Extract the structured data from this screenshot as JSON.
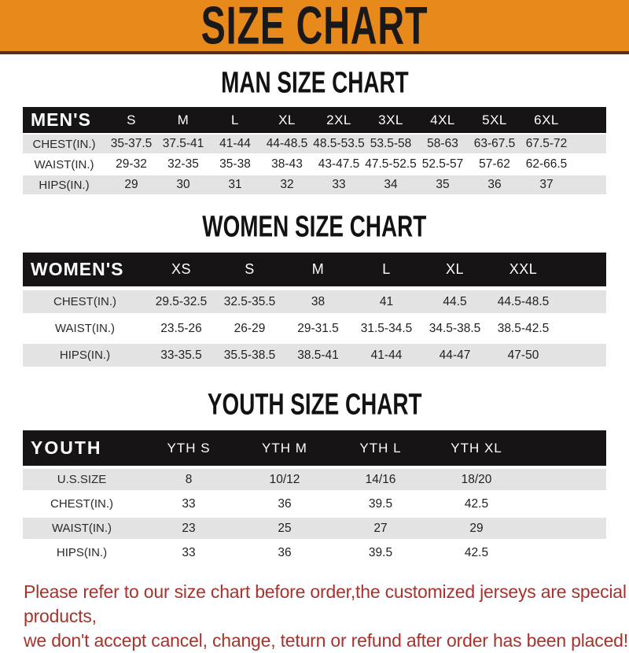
{
  "banner": {
    "title": "SIZE CHART",
    "background_color": "#E8891C",
    "text_color": "#191919"
  },
  "sections": {
    "men": {
      "title": "MAN SIZE CHART"
    },
    "women": {
      "title": "WOMEN SIZE CHART"
    },
    "youth": {
      "title": "YOUTH SIZE CHART"
    }
  },
  "tables": {
    "men": {
      "header_label": "MEN'S",
      "columns": [
        "S",
        "M",
        "L",
        "XL",
        "2XL",
        "3XL",
        "4XL",
        "5XL",
        "6XL"
      ],
      "rows": [
        {
          "label": "CHEST(IN.)",
          "values": [
            "35-37.5",
            "37.5-41",
            "41-44",
            "44-48.5",
            "48.5-53.5",
            "53.5-58",
            "58-63",
            "63-67.5",
            "67.5-72"
          ]
        },
        {
          "label": "WAIST(IN.)",
          "values": [
            "29-32",
            "32-35",
            "35-38",
            "38-43",
            "43-47.5",
            "47.5-52.5",
            "52.5-57",
            "57-62",
            "62-66.5"
          ]
        },
        {
          "label": "HIPS(IN.)",
          "values": [
            "29",
            "30",
            "31",
            "32",
            "33",
            "34",
            "35",
            "36",
            "37"
          ]
        }
      ]
    },
    "women": {
      "header_label": "WOMEN'S",
      "columns": [
        "XS",
        "S",
        "M",
        "L",
        "XL",
        "XXL"
      ],
      "rows": [
        {
          "label": "CHEST(IN.)",
          "values": [
            "29.5-32.5",
            "32.5-35.5",
            "38",
            "41",
            "44.5",
            "44.5-48.5"
          ]
        },
        {
          "label": "WAIST(IN.)",
          "values": [
            "23.5-26",
            "26-29",
            "29-31.5",
            "31.5-34.5",
            "34.5-38.5",
            "38.5-42.5"
          ]
        },
        {
          "label": "HIPS(IN.)",
          "values": [
            "33-35.5",
            "35.5-38.5",
            "38.5-41",
            "41-44",
            "44-47",
            "47-50"
          ]
        }
      ]
    },
    "youth": {
      "header_label": "YOUTH",
      "columns": [
        "YTH S",
        "YTH M",
        "YTH L",
        "YTH XL"
      ],
      "rows": [
        {
          "label": "U.S.SIZE",
          "values": [
            "8",
            "10/12",
            "14/16",
            "18/20"
          ]
        },
        {
          "label": "CHEST(IN.)",
          "values": [
            "33",
            "36",
            "39.5",
            "42.5"
          ]
        },
        {
          "label": "WAIST(IN.)",
          "values": [
            "23",
            "25",
            "27",
            "29"
          ]
        },
        {
          "label": "HIPS(IN.)",
          "values": [
            "33",
            "36",
            "39.5",
            "42.5"
          ]
        }
      ]
    }
  },
  "disclaimer": {
    "line1": "Please refer to our size chart before order,the customized jerseys are special products,",
    "line2": "we don't accept cancel, change, teturn or refund after order has been placed!",
    "text_color": "#A8322C"
  },
  "colors": {
    "header_bar": "#161414",
    "row_stripe": "#e3e3e4"
  }
}
